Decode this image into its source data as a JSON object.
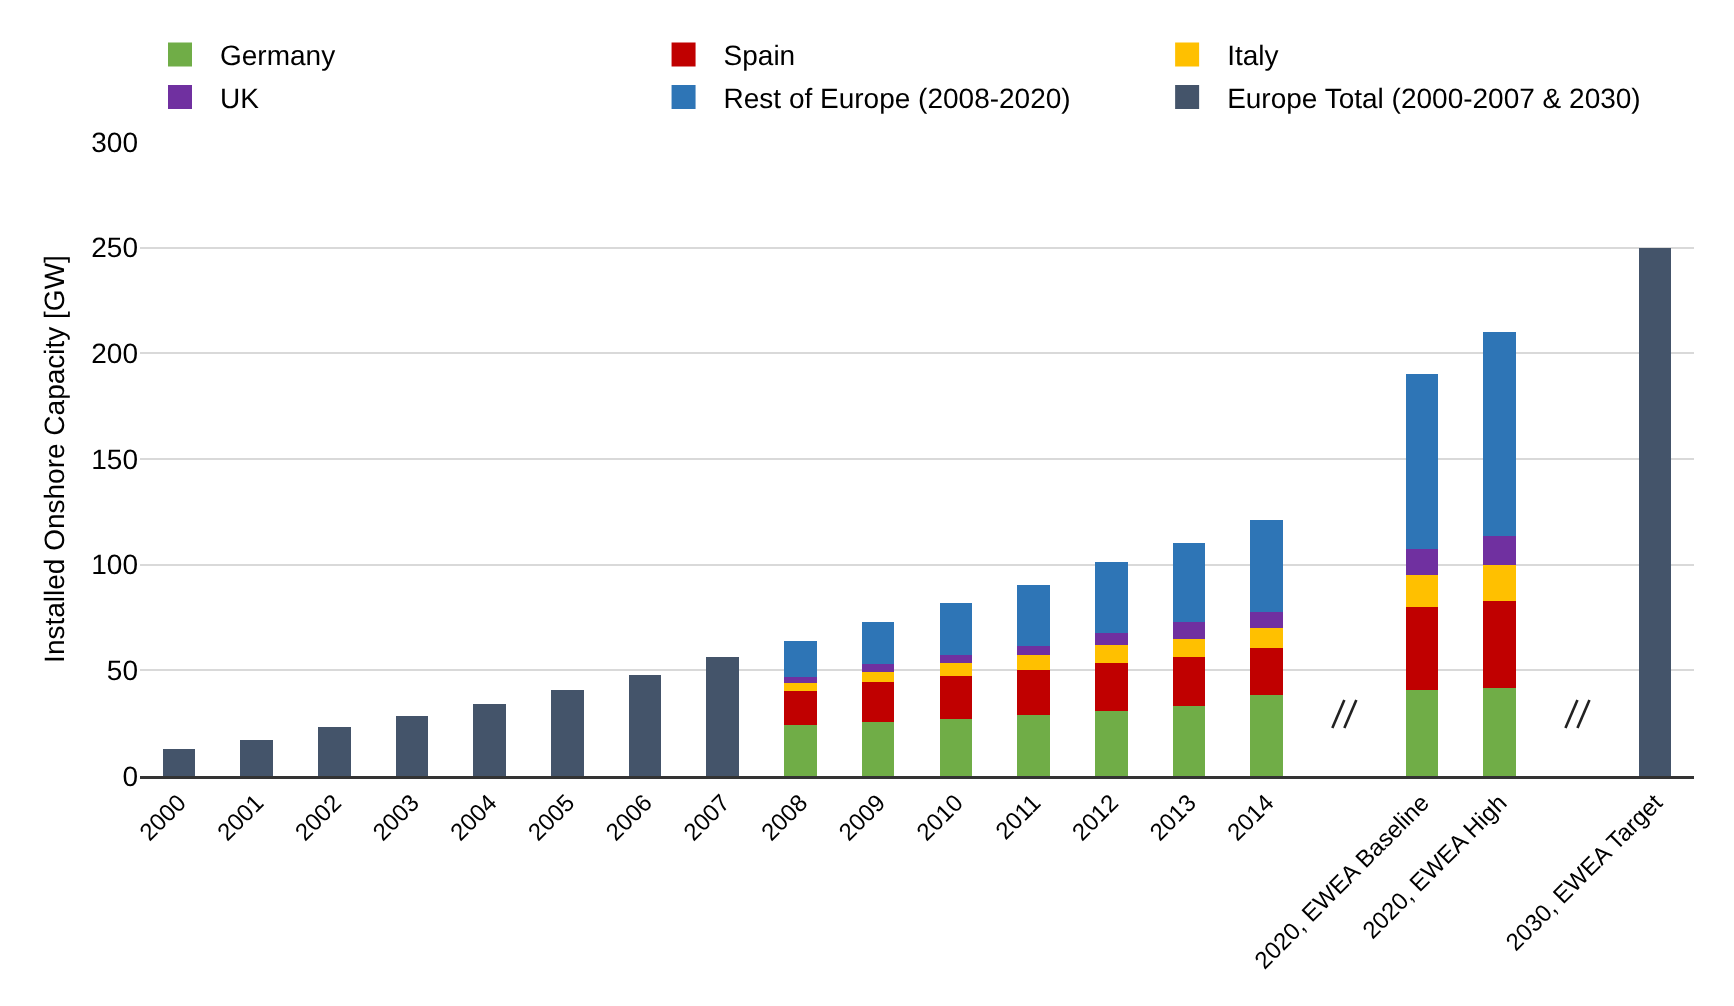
{
  "chart_data": {
    "type": "bar",
    "stacked": true,
    "ylabel": "Installed Onshore Capacity [GW]",
    "categories": [
      "2000",
      "2001",
      "2002",
      "2003",
      "2004",
      "2005",
      "2006",
      "2007",
      "2008",
      "2009",
      "2010",
      "2011",
      "2012",
      "2013",
      "2014",
      null,
      "2020, EWEA Baseline",
      "2020, EWEA High",
      null,
      "2030, EWEA Target"
    ],
    "series": [
      {
        "name": "Germany",
        "color": "#70ad47",
        "values": [
          null,
          null,
          null,
          null,
          null,
          null,
          null,
          null,
          24,
          25.4,
          26.9,
          28.7,
          30.7,
          33.3,
          38.3,
          null,
          40.6,
          41.8,
          null,
          null
        ]
      },
      {
        "name": "Spain",
        "color": "#c00000",
        "values": [
          null,
          null,
          null,
          null,
          null,
          null,
          null,
          null,
          16.4,
          19.3,
          20.5,
          21.6,
          22.8,
          22.8,
          22.5,
          null,
          39.2,
          40.9,
          null,
          null
        ]
      },
      {
        "name": "Italy",
        "color": "#ffc000",
        "values": [
          null,
          null,
          null,
          null,
          null,
          null,
          null,
          null,
          3.5,
          4.7,
          6.1,
          7,
          8.5,
          8.8,
          9.1,
          null,
          15.2,
          17.3,
          null,
          null
        ]
      },
      {
        "name": "UK",
        "color": "#7030a0",
        "values": [
          null,
          null,
          null,
          null,
          null,
          null,
          null,
          null,
          3.1,
          3.5,
          3.8,
          4.4,
          5.8,
          7.9,
          7.9,
          null,
          12.6,
          13.7,
          null,
          null
        ]
      },
      {
        "name": "Rest of Europe (2008-2020)",
        "color": "#2e75b6",
        "values": [
          null,
          null,
          null,
          null,
          null,
          null,
          null,
          null,
          17,
          20.2,
          24.6,
          28.9,
          33.4,
          37.4,
          43.2,
          null,
          82.4,
          96.3,
          null,
          null
        ]
      },
      {
        "name": "Europe Total (2000-2007 & 2030)",
        "color": "#44546a",
        "values": [
          12.6,
          17,
          23,
          28.5,
          34.1,
          40.6,
          47.6,
          56.2,
          null,
          null,
          null,
          null,
          null,
          null,
          null,
          null,
          null,
          null,
          null,
          250
        ]
      }
    ],
    "ylim": [
      0,
      300
    ],
    "yticks": [
      0,
      50,
      100,
      150,
      200,
      250,
      300
    ],
    "grid": "y",
    "legend": "top"
  }
}
